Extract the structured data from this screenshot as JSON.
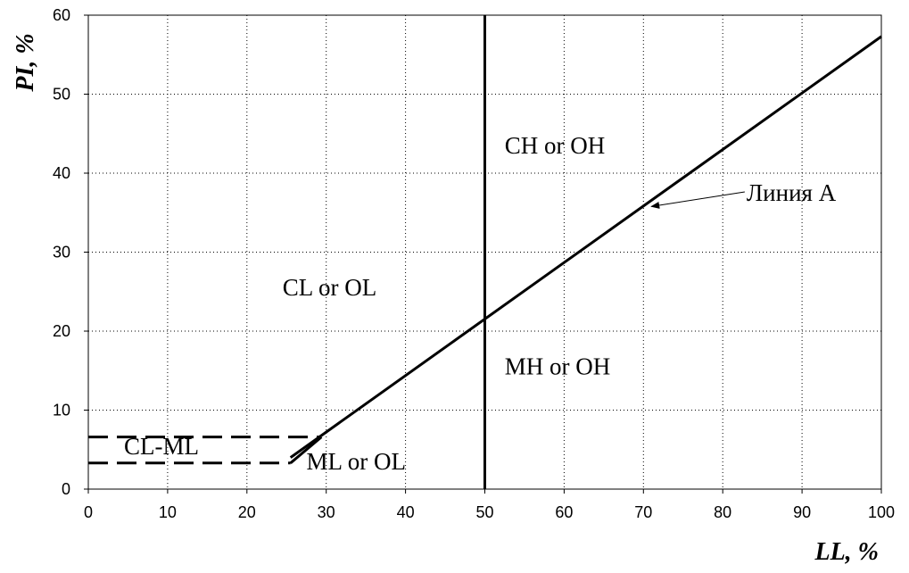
{
  "chart_data": {
    "type": "line",
    "xlabel": "LL, %",
    "ylabel": "PI, %",
    "xlim": [
      0,
      100
    ],
    "ylim": [
      0,
      60
    ],
    "xticks": [
      0,
      10,
      20,
      30,
      40,
      50,
      60,
      70,
      80,
      90,
      100
    ],
    "yticks": [
      0,
      10,
      20,
      30,
      40,
      50,
      60
    ],
    "grid": true,
    "colors": {
      "line": "#000000",
      "grid": "#000000",
      "background": "#ffffff"
    },
    "lines": [
      {
        "label": "Линия A",
        "style": "solid",
        "x": [
          25.5,
          100
        ],
        "y": [
          4,
          57.3
        ]
      },
      {
        "label": "",
        "style": "solid",
        "x": [
          50,
          50
        ],
        "y": [
          0,
          60
        ]
      },
      {
        "label": "",
        "style": "dashed",
        "x": [
          0,
          29.4
        ],
        "y": [
          6.6,
          6.6
        ]
      },
      {
        "label": "",
        "style": "dashed",
        "x": [
          0,
          25.5
        ],
        "y": [
          3.3,
          3.3
        ]
      },
      {
        "label": "",
        "style": "solid",
        "x": [
          25.5,
          29.4
        ],
        "y": [
          3.3,
          6.6
        ]
      }
    ],
    "regions": [
      {
        "label": "CH or OH",
        "x": 52.5,
        "y": 42.5
      },
      {
        "label": "CL or OL",
        "x": 24.5,
        "y": 24.5
      },
      {
        "label": "MH or OH",
        "x": 52.5,
        "y": 14.5
      },
      {
        "label": "CL-ML",
        "x": 4.5,
        "y": 4.4
      },
      {
        "label": "ML or OL",
        "x": 27.5,
        "y": 2.5
      }
    ],
    "annotations": [
      {
        "text": "Линия A",
        "text_x": 83,
        "text_y": 36.5,
        "point_x": 71,
        "point_y": 36
      }
    ]
  }
}
